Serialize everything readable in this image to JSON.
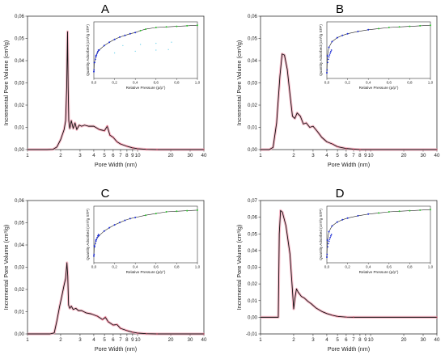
{
  "chart_data": [
    {
      "type": "line",
      "panel": "A",
      "xlabel": "Pore Width (nm)",
      "ylabel": "Incremental Pore Volume (cm³/g)",
      "x_scale": "log",
      "xlim": [
        1,
        40
      ],
      "ylim": [
        0,
        0.06
      ],
      "xticks": [
        1,
        2,
        3,
        4,
        5,
        6,
        7,
        8,
        9,
        10,
        20,
        30,
        40
      ],
      "yticks": [
        "0,00",
        "0,01",
        "0,02",
        "0,03",
        "0,04",
        "0,05",
        "0,06"
      ],
      "yticks_values": [
        0,
        0.01,
        0.02,
        0.03,
        0.04,
        0.05,
        0.06
      ],
      "series": [
        {
          "color": "#111111",
          "points": [
            [
              1.0,
              0.0
            ],
            [
              1.5,
              0.0
            ],
            [
              1.7,
              0.0001
            ],
            [
              1.85,
              0.0012
            ],
            [
              2.0,
              0.0045
            ],
            [
              2.15,
              0.009
            ],
            [
              2.22,
              0.013
            ],
            [
              2.27,
              0.028
            ],
            [
              2.31,
              0.053
            ],
            [
              2.34,
              0.028
            ],
            [
              2.37,
              0.013
            ],
            [
              2.42,
              0.0095
            ],
            [
              2.5,
              0.013
            ],
            [
              2.6,
              0.0095
            ],
            [
              2.7,
              0.012
            ],
            [
              2.8,
              0.009
            ],
            [
              2.95,
              0.011
            ],
            [
              3.1,
              0.0105
            ],
            [
              3.3,
              0.011
            ],
            [
              3.6,
              0.0105
            ],
            [
              4.0,
              0.0105
            ],
            [
              4.5,
              0.009
            ],
            [
              5.0,
              0.0085
            ],
            [
              5.3,
              0.0105
            ],
            [
              5.6,
              0.0065
            ],
            [
              6.0,
              0.0055
            ],
            [
              6.5,
              0.0035
            ],
            [
              7.0,
              0.0025
            ],
            [
              8.0,
              0.0015
            ],
            [
              9.0,
              0.0008
            ],
            [
              10.0,
              0.0004
            ],
            [
              12,
              0.0001
            ],
            [
              15,
              0.0
            ],
            [
              40,
              0.0
            ]
          ]
        }
      ],
      "inset": {
        "xlabel": "Relative Pressure (p/p°)",
        "ylabel": "Quantity Adsorbed (cm³/g STP)",
        "xlim": [
          0,
          1.0
        ],
        "xticks": [
          "0,0",
          "0,2",
          "0,4",
          "0,6",
          "0,8",
          "1,0"
        ],
        "xticks_values": [
          0,
          0.2,
          0.4,
          0.6,
          0.8,
          1.0
        ],
        "curve": [
          [
            0.0,
            0.12
          ],
          [
            0.005,
            0.28
          ],
          [
            0.02,
            0.4
          ],
          [
            0.05,
            0.5
          ],
          [
            0.1,
            0.58
          ],
          [
            0.15,
            0.64
          ],
          [
            0.2,
            0.69
          ],
          [
            0.25,
            0.73
          ],
          [
            0.3,
            0.76
          ],
          [
            0.35,
            0.79
          ],
          [
            0.4,
            0.81
          ],
          [
            0.45,
            0.845
          ],
          [
            0.5,
            0.87
          ],
          [
            0.6,
            0.9
          ],
          [
            0.7,
            0.91
          ],
          [
            0.8,
            0.92
          ],
          [
            0.9,
            0.93
          ],
          [
            1.0,
            0.94
          ]
        ],
        "has_cyan_traces": true
      }
    },
    {
      "type": "line",
      "panel": "B",
      "xlabel": "Pore Width (nm)",
      "ylabel": "Incremental Pore Volume (cm³/g)",
      "x_scale": "log",
      "xlim": [
        1,
        40
      ],
      "ylim": [
        0,
        0.06
      ],
      "xticks": [
        1,
        2,
        3,
        4,
        5,
        6,
        7,
        8,
        9,
        10,
        20,
        30,
        40
      ],
      "yticks": [
        "0,00",
        "0,01",
        "0,02",
        "0,03",
        "0,04",
        "0,05",
        "0,06"
      ],
      "yticks_values": [
        0,
        0.01,
        0.02,
        0.03,
        0.04,
        0.05,
        0.06
      ],
      "series": [
        {
          "color": "#111111",
          "points": [
            [
              1.0,
              0.0
            ],
            [
              1.2,
              0.0
            ],
            [
              1.3,
              0.001
            ],
            [
              1.4,
              0.012
            ],
            [
              1.5,
              0.033
            ],
            [
              1.57,
              0.043
            ],
            [
              1.65,
              0.0425
            ],
            [
              1.75,
              0.036
            ],
            [
              1.85,
              0.025
            ],
            [
              1.95,
              0.015
            ],
            [
              2.05,
              0.014
            ],
            [
              2.15,
              0.0165
            ],
            [
              2.3,
              0.015
            ],
            [
              2.45,
              0.0115
            ],
            [
              2.6,
              0.012
            ],
            [
              2.8,
              0.01
            ],
            [
              3.0,
              0.0105
            ],
            [
              3.3,
              0.008
            ],
            [
              3.6,
              0.0055
            ],
            [
              4.0,
              0.0035
            ],
            [
              4.5,
              0.0025
            ],
            [
              5.0,
              0.0013
            ],
            [
              6.0,
              0.0005
            ],
            [
              7.0,
              0.0002
            ],
            [
              8.0,
              0.0
            ],
            [
              40,
              0.0
            ]
          ]
        }
      ],
      "inset": {
        "xlabel": "Relative Pressure (p/p°)",
        "ylabel": "Quantity Adsorbed (cm³/g STP)",
        "xlim": [
          0,
          1.0
        ],
        "xticks": [
          "0,0",
          "0,2",
          "0,4",
          "0,6",
          "0,8",
          "1,0"
        ],
        "xticks_values": [
          0,
          0.2,
          0.4,
          0.6,
          0.8,
          1.0
        ],
        "curve": [
          [
            0.0,
            0.1
          ],
          [
            0.005,
            0.4
          ],
          [
            0.02,
            0.55
          ],
          [
            0.05,
            0.65
          ],
          [
            0.1,
            0.72
          ],
          [
            0.15,
            0.76
          ],
          [
            0.2,
            0.79
          ],
          [
            0.3,
            0.83
          ],
          [
            0.4,
            0.86
          ],
          [
            0.5,
            0.88
          ],
          [
            0.6,
            0.9
          ],
          [
            0.7,
            0.91
          ],
          [
            0.8,
            0.92
          ],
          [
            0.9,
            0.93
          ],
          [
            1.0,
            0.94
          ]
        ],
        "has_cyan_traces": false
      }
    },
    {
      "type": "line",
      "panel": "C",
      "xlabel": "Pore Width (nm)",
      "ylabel": "Incremental Pore Volume (cm³/g)",
      "x_scale": "log",
      "xlim": [
        1,
        40
      ],
      "ylim": [
        0,
        0.06
      ],
      "xticks": [
        1,
        2,
        3,
        4,
        5,
        6,
        7,
        8,
        9,
        10,
        20,
        30,
        40
      ],
      "yticks": [
        "0,00",
        "0,01",
        "0,02",
        "0,03",
        "0,04",
        "0,05",
        "0,06"
      ],
      "yticks_values": [
        0,
        0.01,
        0.02,
        0.03,
        0.04,
        0.05,
        0.06
      ],
      "series": [
        {
          "color": "#111111",
          "points": [
            [
              1.0,
              0.0
            ],
            [
              1.6,
              0.0
            ],
            [
              1.75,
              0.0005
            ],
            [
              1.85,
              0.006
            ],
            [
              1.95,
              0.012
            ],
            [
              2.05,
              0.017
            ],
            [
              2.15,
              0.022
            ],
            [
              2.22,
              0.025
            ],
            [
              2.28,
              0.032
            ],
            [
              2.32,
              0.026
            ],
            [
              2.36,
              0.013
            ],
            [
              2.42,
              0.0115
            ],
            [
              2.5,
              0.0125
            ],
            [
              2.6,
              0.011
            ],
            [
              2.75,
              0.0115
            ],
            [
              2.9,
              0.0105
            ],
            [
              3.1,
              0.0105
            ],
            [
              3.4,
              0.0095
            ],
            [
              3.8,
              0.009
            ],
            [
              4.3,
              0.008
            ],
            [
              4.8,
              0.0065
            ],
            [
              5.1,
              0.0075
            ],
            [
              5.4,
              0.0055
            ],
            [
              6.0,
              0.004
            ],
            [
              6.5,
              0.0042
            ],
            [
              7.0,
              0.0025
            ],
            [
              8.0,
              0.0015
            ],
            [
              9.0,
              0.0008
            ],
            [
              10.0,
              0.0004
            ],
            [
              12.0,
              0.0001
            ],
            [
              15,
              0.0
            ],
            [
              40,
              0.0
            ]
          ]
        }
      ],
      "inset": {
        "xlabel": "Relative Pressure (p/p°)",
        "ylabel": "Quantity Adsorbed (cm³/g STP)",
        "xlim": [
          0,
          1.0
        ],
        "xticks": [
          "0,0",
          "0,2",
          "0,4",
          "0,6",
          "0,8",
          "1,0"
        ],
        "xticks_values": [
          0,
          0.2,
          0.4,
          0.6,
          0.8,
          1.0
        ],
        "curve": [
          [
            0.0,
            0.12
          ],
          [
            0.005,
            0.3
          ],
          [
            0.02,
            0.4
          ],
          [
            0.05,
            0.48
          ],
          [
            0.1,
            0.56
          ],
          [
            0.15,
            0.62
          ],
          [
            0.2,
            0.67
          ],
          [
            0.25,
            0.71
          ],
          [
            0.3,
            0.75
          ],
          [
            0.35,
            0.78
          ],
          [
            0.4,
            0.8
          ],
          [
            0.5,
            0.84
          ],
          [
            0.6,
            0.87
          ],
          [
            0.7,
            0.9
          ],
          [
            0.8,
            0.91
          ],
          [
            0.9,
            0.92
          ],
          [
            1.0,
            0.93
          ]
        ],
        "has_cyan_traces": false
      }
    },
    {
      "type": "line",
      "panel": "D",
      "xlabel": "Pore Width (nm)",
      "ylabel": "Incremental Pore Volume (cm³/g)",
      "x_scale": "log",
      "xlim": [
        1,
        40
      ],
      "ylim": [
        -0.01,
        0.07
      ],
      "xticks": [
        1,
        2,
        3,
        4,
        5,
        6,
        7,
        8,
        9,
        10,
        20,
        30,
        40
      ],
      "yticks": [
        "-0,01",
        "0,00",
        "0,01",
        "0,02",
        "0,03",
        "0,04",
        "0,05",
        "0,06",
        "0,07"
      ],
      "yticks_values": [
        -0.01,
        0,
        0.01,
        0.02,
        0.03,
        0.04,
        0.05,
        0.06,
        0.07
      ],
      "series": [
        {
          "color": "#111111",
          "points": [
            [
              1.0,
              0.0
            ],
            [
              1.35,
              0.0
            ],
            [
              1.45,
              0.0
            ],
            [
              1.48,
              0.05
            ],
            [
              1.52,
              0.064
            ],
            [
              1.58,
              0.063
            ],
            [
              1.7,
              0.055
            ],
            [
              1.85,
              0.038
            ],
            [
              1.95,
              0.016
            ],
            [
              2.0,
              0.005
            ],
            [
              2.05,
              0.011
            ],
            [
              2.12,
              0.017
            ],
            [
              2.2,
              0.015
            ],
            [
              2.35,
              0.0125
            ],
            [
              2.5,
              0.0115
            ],
            [
              2.7,
              0.0095
            ],
            [
              2.9,
              0.008
            ],
            [
              3.2,
              0.0055
            ],
            [
              3.6,
              0.0035
            ],
            [
              4.0,
              0.0022
            ],
            [
              4.5,
              0.0012
            ],
            [
              5.0,
              0.0005
            ],
            [
              6.0,
              0.0001
            ],
            [
              7.0,
              0.0
            ],
            [
              40,
              0.0
            ]
          ]
        }
      ],
      "inset": {
        "xlabel": "Relative Pressure (p/p°)",
        "ylabel": "Quantity Adsorbed (cm³/g STP)",
        "xlim": [
          0,
          1.0
        ],
        "xticks": [
          "0,0",
          "0,2",
          "0,4",
          "0,6",
          "0,8",
          "1,0"
        ],
        "xticks_values": [
          0,
          0.2,
          0.4,
          0.6,
          0.8,
          1.0
        ],
        "curve": [
          [
            0.0,
            0.1
          ],
          [
            0.005,
            0.4
          ],
          [
            0.02,
            0.55
          ],
          [
            0.05,
            0.65
          ],
          [
            0.1,
            0.72
          ],
          [
            0.15,
            0.76
          ],
          [
            0.2,
            0.79
          ],
          [
            0.3,
            0.83
          ],
          [
            0.4,
            0.86
          ],
          [
            0.5,
            0.88
          ],
          [
            0.6,
            0.9
          ],
          [
            0.7,
            0.91
          ],
          [
            0.8,
            0.92
          ],
          [
            0.9,
            0.93
          ],
          [
            1.0,
            0.94
          ]
        ],
        "has_cyan_traces": false
      }
    }
  ],
  "colors": {
    "curve": "#111111",
    "envelope": "#f4a6b8",
    "inset_blue": "#1f2fd6",
    "inset_green": "#2ec82e",
    "inset_cyan": "#7fd8ee",
    "inset_fit": "#222222",
    "axis": "#333333"
  }
}
